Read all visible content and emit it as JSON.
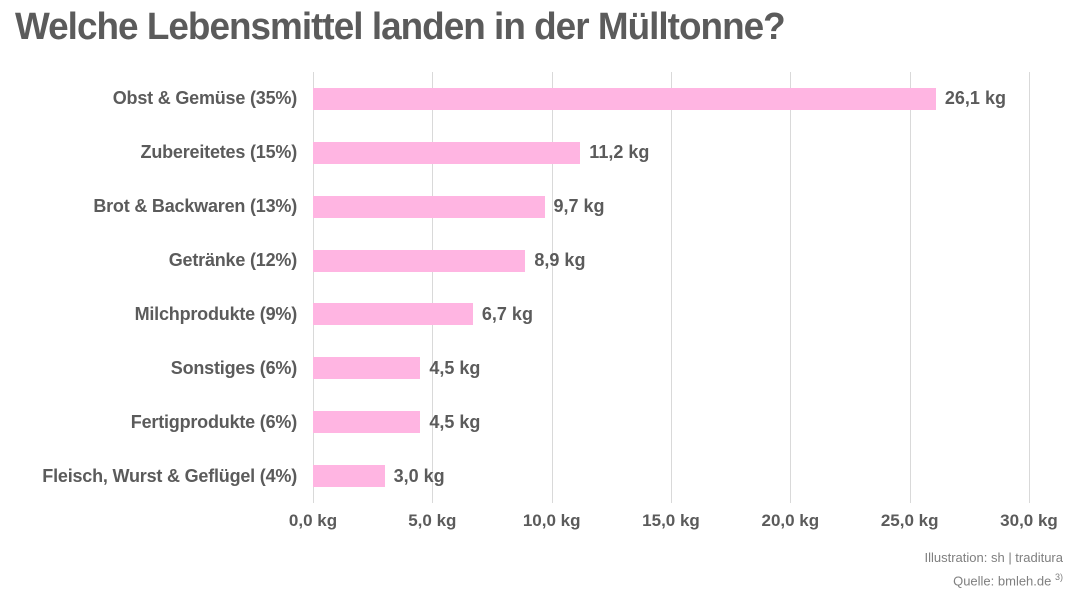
{
  "title": "Welche Lebensmittel landen in der Mülltonne?",
  "chart_data": {
    "type": "bar",
    "orientation": "horizontal",
    "title": "Welche Lebensmittel landen in der Mülltonne?",
    "categories": [
      "Obst & Gemüse (35%)",
      "Zubereitetes (15%)",
      "Brot & Backwaren (13%)",
      "Getränke (12%)",
      "Milchprodukte (9%)",
      "Sonstiges (6%)",
      "Fertigprodukte (6%)",
      "Fleisch, Wurst & Geflügel (4%)"
    ],
    "values": [
      26.1,
      11.2,
      9.7,
      8.9,
      6.7,
      4.5,
      4.5,
      3.0
    ],
    "value_labels": [
      "26,1 kg",
      "11,2 kg",
      "9,7 kg",
      "8,9 kg",
      "6,7 kg",
      "4,5 kg",
      "4,5 kg",
      "3,0 kg"
    ],
    "x_ticks": [
      "0,0 kg",
      "5,0 kg",
      "10,0 kg",
      "15,0 kg",
      "20,0 kg",
      "25,0 kg",
      "30,0 kg"
    ],
    "x_tick_values": [
      0,
      5,
      10,
      15,
      20,
      25,
      30
    ],
    "xlim": [
      0,
      30
    ],
    "xlabel": "",
    "ylabel": "",
    "grid": true,
    "legend": false
  },
  "footer": {
    "illustration": "Illustration: sh | traditura",
    "source": "Quelle: bmleh.de",
    "source_sup": "3)"
  },
  "colors": {
    "bar": "#ffb5e2",
    "text": "#5b5b5b",
    "grid": "#d9d9d9",
    "footer_text": "#7f7f7f",
    "background": "#ffffff"
  }
}
